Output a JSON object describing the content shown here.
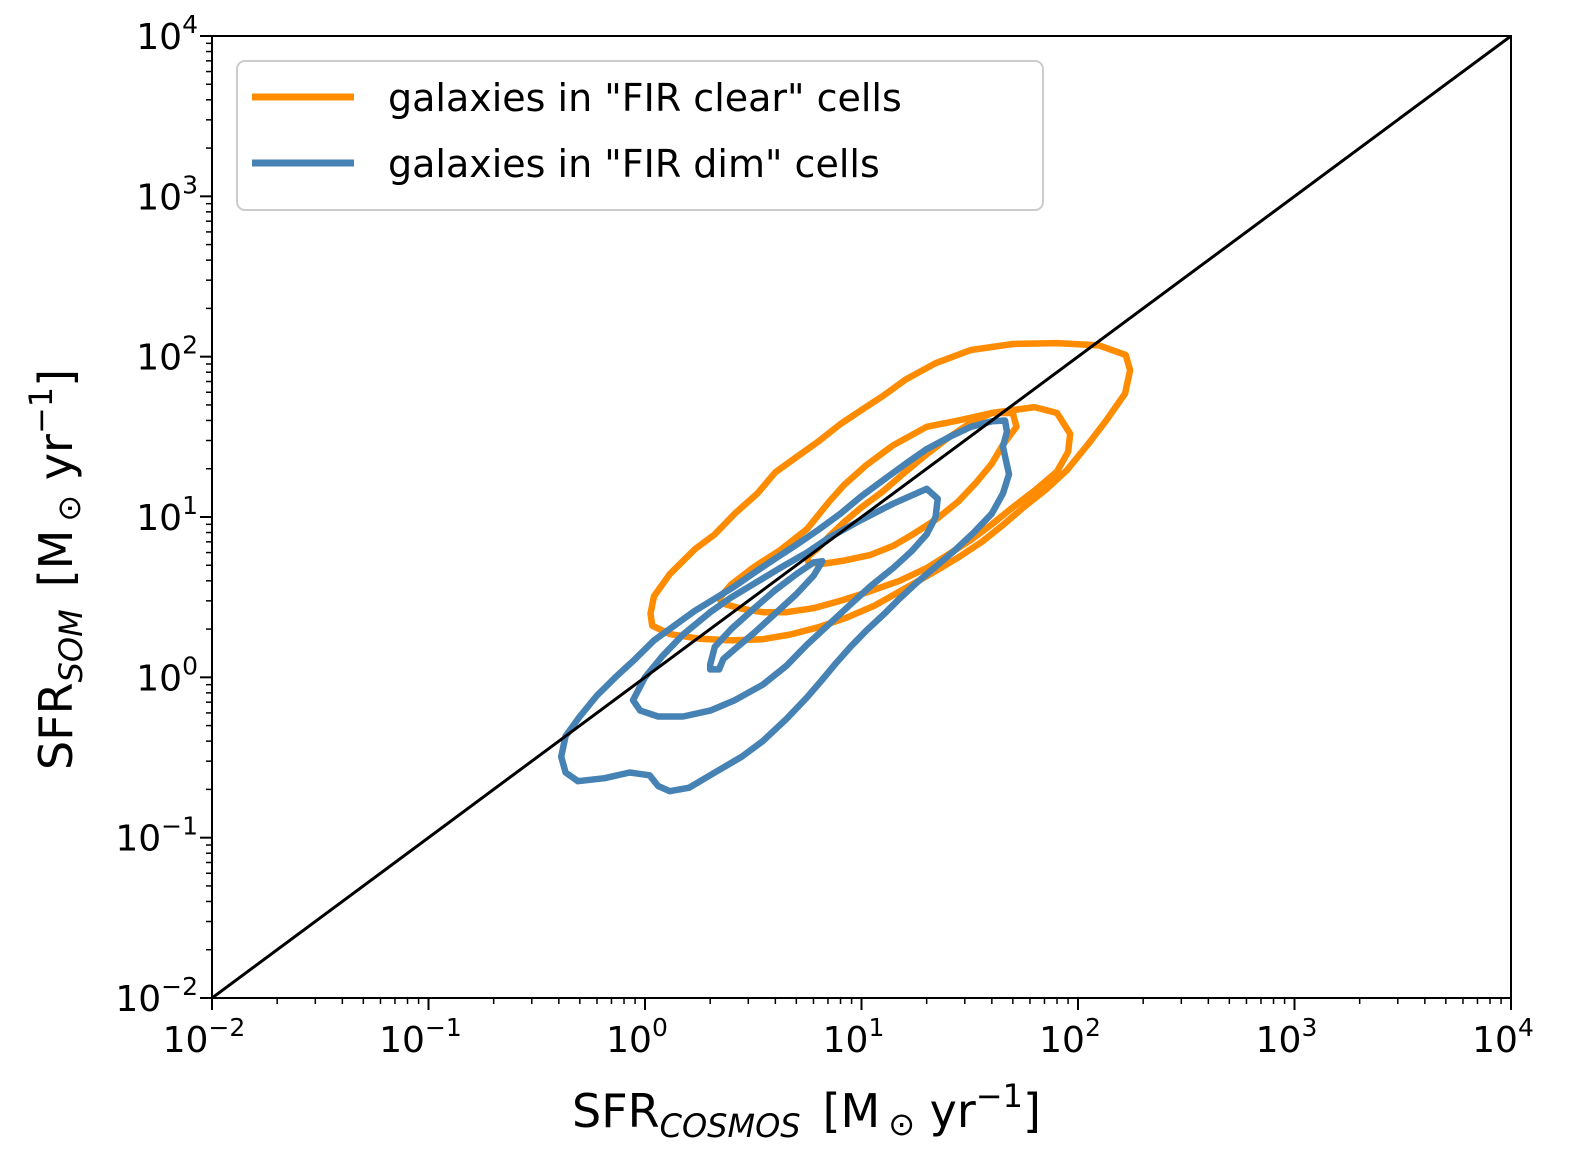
{
  "chart_data": {
    "type": "contour",
    "x_scale": "log",
    "y_scale": "log",
    "xlim": [
      0.01,
      10000
    ],
    "ylim": [
      0.01,
      10000
    ],
    "x_ticks": [
      {
        "base": "10",
        "exp": "−2",
        "value": 0.01
      },
      {
        "base": "10",
        "exp": "−1",
        "value": 0.1
      },
      {
        "base": "10",
        "exp": "0",
        "value": 1
      },
      {
        "base": "10",
        "exp": "1",
        "value": 10
      },
      {
        "base": "10",
        "exp": "2",
        "value": 100
      },
      {
        "base": "10",
        "exp": "3",
        "value": 1000
      },
      {
        "base": "10",
        "exp": "4",
        "value": 10000
      }
    ],
    "y_ticks": [
      {
        "base": "10",
        "exp": "−2",
        "value": 0.01
      },
      {
        "base": "10",
        "exp": "−1",
        "value": 0.1
      },
      {
        "base": "10",
        "exp": "0",
        "value": 1
      },
      {
        "base": "10",
        "exp": "1",
        "value": 10
      },
      {
        "base": "10",
        "exp": "2",
        "value": 100
      },
      {
        "base": "10",
        "exp": "3",
        "value": 1000
      },
      {
        "base": "10",
        "exp": "4",
        "value": 10000
      }
    ],
    "xlabel": {
      "main": "SFR",
      "sub": "COSMOS",
      "unit_prefix": "[M",
      "unit_sym": "⊙",
      "unit_mid": " yr",
      "unit_sup": "−1",
      "unit_end": "]"
    },
    "ylabel": {
      "main": "SFR",
      "sub": "SOM",
      "unit_prefix": "[M",
      "unit_sym": "⊙",
      "unit_mid": " yr",
      "unit_sup": "−1",
      "unit_end": "]"
    },
    "one_to_one_line": {
      "x": [
        0.01,
        10000
      ],
      "y": [
        0.01,
        10000
      ],
      "color": "#000000"
    },
    "legend": {
      "location": "upper left"
    },
    "series": [
      {
        "name": "galaxies in \"FIR clear\" cells",
        "color": "#ff8c00",
        "contours": [
          [
            [
              1.06,
              2.5
            ],
            [
              1.1,
              3.2
            ],
            [
              1.3,
              4.4
            ],
            [
              1.7,
              6.3
            ],
            [
              2.1,
              7.8
            ],
            [
              2.6,
              10.5
            ],
            [
              3.3,
              14.0
            ],
            [
              4.0,
              19.0
            ],
            [
              5.0,
              23.6
            ],
            [
              6.3,
              29.5
            ],
            [
              8.0,
              38.0
            ],
            [
              10.0,
              46.5
            ],
            [
              12.6,
              57.0
            ],
            [
              16.0,
              72.0
            ],
            [
              22.0,
              91.0
            ],
            [
              32.0,
              110.0
            ],
            [
              50.0,
              120.0
            ],
            [
              80.0,
              121.5
            ],
            [
              125.0,
              117.5
            ],
            [
              166.0,
              102.5
            ],
            [
              174.0,
              82.3
            ],
            [
              165.0,
              58.9
            ],
            [
              135.0,
              40.0
            ],
            [
              110.0,
              27.9
            ],
            [
              89.0,
              19.6
            ],
            [
              71.0,
              14.8
            ],
            [
              56.0,
              11.5
            ],
            [
              45.0,
              8.9
            ],
            [
              36.0,
              7.0
            ],
            [
              28.0,
              5.6
            ],
            [
              22.0,
              4.6
            ],
            [
              16.0,
              3.6
            ],
            [
              11.5,
              2.8
            ],
            [
              8.5,
              2.35
            ],
            [
              6.3,
              2.05
            ],
            [
              4.7,
              1.85
            ],
            [
              3.5,
              1.73
            ],
            [
              2.5,
              1.7
            ],
            [
              1.8,
              1.74
            ],
            [
              1.3,
              1.86
            ],
            [
              1.08,
              2.1
            ],
            [
              1.06,
              2.5
            ]
          ],
          [
            [
              2.2,
              3.1
            ],
            [
              2.5,
              3.8
            ],
            [
              3.2,
              4.9
            ],
            [
              4.2,
              6.2
            ],
            [
              5.6,
              8.4
            ],
            [
              7.1,
              12.5
            ],
            [
              8.3,
              15.8
            ],
            [
              10.5,
              21.0
            ],
            [
              14.0,
              28.0
            ],
            [
              20.0,
              36.5
            ],
            [
              28.0,
              40.0
            ],
            [
              40.0,
              44.5
            ],
            [
              63.0,
              48.5
            ],
            [
              80.0,
              44.5
            ],
            [
              92.0,
              33.0
            ],
            [
              90.0,
              25.5
            ],
            [
              80.0,
              19.2
            ],
            [
              63.0,
              14.6
            ],
            [
              50.0,
              11.5
            ],
            [
              40.0,
              9.0
            ],
            [
              32.0,
              7.2
            ],
            [
              25.0,
              5.8
            ],
            [
              20.0,
              4.8
            ],
            [
              15.0,
              4.0
            ],
            [
              11.0,
              3.45
            ],
            [
              8.0,
              3.0
            ],
            [
              6.0,
              2.7
            ],
            [
              4.5,
              2.55
            ],
            [
              3.5,
              2.55
            ],
            [
              2.8,
              2.68
            ],
            [
              2.3,
              2.88
            ],
            [
              2.2,
              3.1
            ]
          ],
          [
            [
              5.6,
              5.6
            ],
            [
              6.3,
              6.4
            ],
            [
              7.1,
              7.6
            ],
            [
              8.3,
              9.3
            ],
            [
              10.0,
              11.5
            ],
            [
              12.6,
              14.5
            ],
            [
              16.0,
              19.2
            ],
            [
              20.0,
              24.6
            ],
            [
              25.0,
              31.0
            ],
            [
              32.0,
              38.8
            ],
            [
              40.0,
              44.5
            ],
            [
              50.0,
              44.5
            ],
            [
              52.0,
              36.5
            ],
            [
              45.0,
              28.2
            ],
            [
              40.0,
              21.5
            ],
            [
              34.0,
              16.5
            ],
            [
              28.0,
              12.5
            ],
            [
              22.0,
              9.6
            ],
            [
              17.0,
              7.7
            ],
            [
              14.0,
              6.6
            ],
            [
              11.0,
              5.8
            ],
            [
              8.3,
              5.35
            ],
            [
              6.6,
              5.1
            ],
            [
              5.7,
              5.2
            ],
            [
              5.6,
              5.6
            ]
          ]
        ]
      },
      {
        "name": "galaxies in \"FIR dim\" cells",
        "color": "#4682b4",
        "contours": [
          [
            [
              0.43,
              0.43
            ],
            [
              0.5,
              0.57
            ],
            [
              0.6,
              0.77
            ],
            [
              0.73,
              1.0
            ],
            [
              0.9,
              1.3
            ],
            [
              1.1,
              1.7
            ],
            [
              1.4,
              2.15
            ],
            [
              1.7,
              2.6
            ],
            [
              2.1,
              3.1
            ],
            [
              2.6,
              3.7
            ],
            [
              3.2,
              4.5
            ],
            [
              4.0,
              5.5
            ],
            [
              5.0,
              6.7
            ],
            [
              6.3,
              8.3
            ],
            [
              8.0,
              10.5
            ],
            [
              10.0,
              13.5
            ],
            [
              12.6,
              17.0
            ],
            [
              16.0,
              21.5
            ],
            [
              20.0,
              26.5
            ],
            [
              26.0,
              32.0
            ],
            [
              32.0,
              36.5
            ],
            [
              40.0,
              39.5
            ],
            [
              46.0,
              40.0
            ],
            [
              47.0,
              34.0
            ],
            [
              45.0,
              27.5
            ],
            [
              48.0,
              18.5
            ],
            [
              45.0,
              14.0
            ],
            [
              40.0,
              10.5
            ],
            [
              33.0,
              8.0
            ],
            [
              27.0,
              6.2
            ],
            [
              22.0,
              4.9
            ],
            [
              18.0,
              3.9
            ],
            [
              15.0,
              3.1
            ],
            [
              12.6,
              2.45
            ],
            [
              10.5,
              1.95
            ],
            [
              8.9,
              1.55
            ],
            [
              7.6,
              1.22
            ],
            [
              6.6,
              0.97
            ],
            [
              5.6,
              0.75
            ],
            [
              4.5,
              0.55
            ],
            [
              3.5,
              0.4
            ],
            [
              2.8,
              0.32
            ],
            [
              2.1,
              0.255
            ],
            [
              1.6,
              0.205
            ],
            [
              1.3,
              0.195
            ],
            [
              1.15,
              0.21
            ],
            [
              1.05,
              0.245
            ],
            [
              0.85,
              0.255
            ],
            [
              0.65,
              0.235
            ],
            [
              0.49,
              0.225
            ],
            [
              0.43,
              0.255
            ],
            [
              0.41,
              0.32
            ],
            [
              0.43,
              0.43
            ]
          ],
          [
            [
              0.93,
              0.83
            ],
            [
              1.0,
              1.0
            ],
            [
              1.2,
              1.35
            ],
            [
              1.5,
              1.85
            ],
            [
              2.0,
              2.55
            ],
            [
              2.5,
              3.15
            ],
            [
              3.2,
              3.85
            ],
            [
              4.2,
              4.8
            ],
            [
              5.6,
              6.0
            ],
            [
              7.1,
              7.45
            ],
            [
              10.0,
              9.6
            ],
            [
              14.0,
              12.1
            ],
            [
              20.0,
              15.0
            ],
            [
              22.5,
              13.0
            ],
            [
              22.0,
              10.0
            ],
            [
              20.0,
              7.8
            ],
            [
              17.0,
              6.1
            ],
            [
              14.0,
              4.8
            ],
            [
              11.0,
              3.7
            ],
            [
              8.9,
              2.85
            ],
            [
              7.1,
              2.15
            ],
            [
              5.6,
              1.6
            ],
            [
              4.5,
              1.18
            ],
            [
              3.5,
              0.9
            ],
            [
              2.6,
              0.72
            ],
            [
              2.0,
              0.62
            ],
            [
              1.5,
              0.57
            ],
            [
              1.15,
              0.57
            ],
            [
              0.95,
              0.62
            ],
            [
              0.88,
              0.72
            ],
            [
              0.93,
              0.83
            ]
          ],
          [
            [
              2.0,
              1.2
            ],
            [
              2.1,
              1.55
            ],
            [
              2.5,
              2.0
            ],
            [
              3.2,
              2.7
            ],
            [
              4.0,
              3.5
            ],
            [
              5.0,
              4.4
            ],
            [
              6.0,
              5.2
            ],
            [
              6.6,
              5.3
            ],
            [
              6.0,
              4.3
            ],
            [
              5.0,
              3.3
            ],
            [
              4.0,
              2.5
            ],
            [
              3.2,
              1.9
            ],
            [
              2.6,
              1.5
            ],
            [
              2.3,
              1.3
            ],
            [
              2.2,
              1.12
            ],
            [
              2.0,
              1.12
            ],
            [
              2.0,
              1.2
            ]
          ]
        ]
      }
    ]
  }
}
